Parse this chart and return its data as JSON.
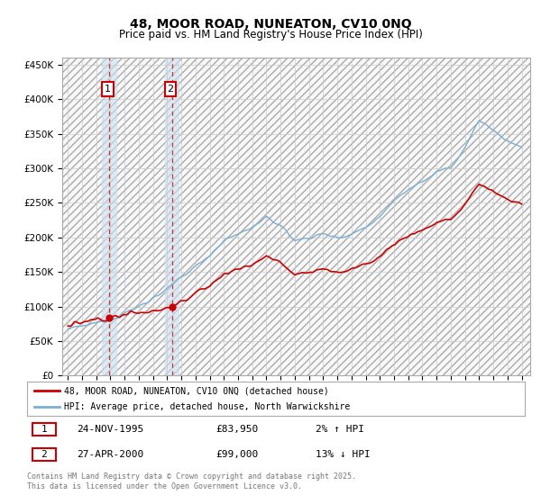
{
  "title": "48, MOOR ROAD, NUNEATON, CV10 0NQ",
  "subtitle": "Price paid vs. HM Land Registry's House Price Index (HPI)",
  "ylim": [
    0,
    460000
  ],
  "yticks": [
    0,
    50000,
    100000,
    150000,
    200000,
    250000,
    300000,
    350000,
    400000,
    450000
  ],
  "ytick_labels": [
    "£0",
    "£50K",
    "£100K",
    "£150K",
    "£200K",
    "£250K",
    "£300K",
    "£350K",
    "£400K",
    "£450K"
  ],
  "sale1_year": 1995.917,
  "sale1_price": 83950,
  "sale2_year": 2000.333,
  "sale2_price": 99000,
  "line_color_red": "#cc0000",
  "line_color_blue": "#7aafd4",
  "grid_color": "#cccccc",
  "bg_color": "#ffffff",
  "legend_label_red": "48, MOOR ROAD, NUNEATON, CV10 0NQ (detached house)",
  "legend_label_blue": "HPI: Average price, detached house, North Warwickshire",
  "footer": "Contains HM Land Registry data © Crown copyright and database right 2025.\nThis data is licensed under the Open Government Licence v3.0.",
  "title_fontsize": 10,
  "subtitle_fontsize": 8.5,
  "xstart": 1993,
  "xend": 2025
}
